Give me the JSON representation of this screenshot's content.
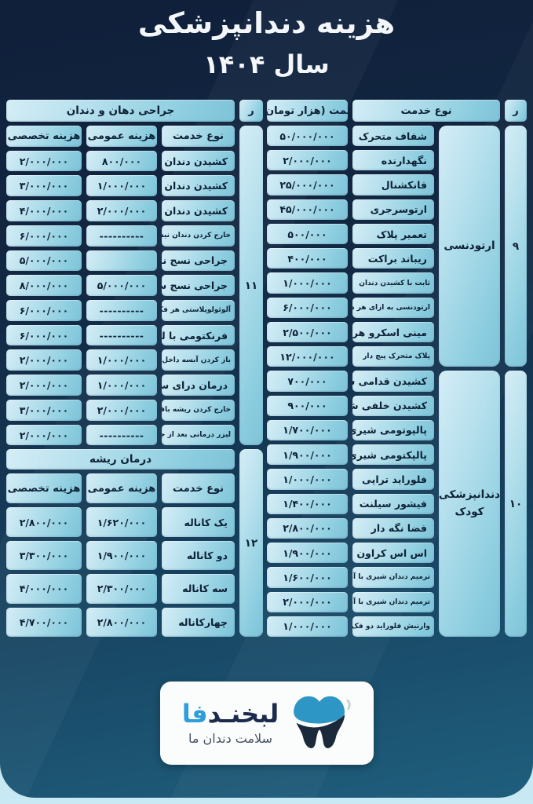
{
  "page": {
    "title_line1": "هزینه دندانپزشکی",
    "title_line2": "سال ۱۴۰۴"
  },
  "colors": {
    "card_navy": "#101f3a",
    "card_teal": "#1f5e7d",
    "cell_light": "#d4edf6",
    "cell_deep": "#7fc3d9",
    "cell_text": "#0e2136",
    "accent_blue": "#2d9ed9",
    "logo_navy": "#1c2b4d"
  },
  "right_table": {
    "col_row": "ر",
    "col_service": "نوع خدمت",
    "col_price": "قیمت (هزار تومان )",
    "groups": [
      {
        "number": "۹",
        "label": "ارتودنسی",
        "rows": [
          {
            "service": "شفاف متحرک",
            "price": "۵۰/۰۰۰/۰۰۰"
          },
          {
            "service": "نگهدارنده",
            "price": "۲/۰۰۰/۰۰۰"
          },
          {
            "service": "فانکشنال",
            "price": "۲۵/۰۰۰/۰۰۰"
          },
          {
            "service": "ارتوسرجری",
            "price": "۴۵/۰۰۰/۰۰۰"
          },
          {
            "service": "تعمیر پلاک",
            "price": "۵۰۰/۰۰۰"
          },
          {
            "service": "ریباند براکت",
            "price": "۴۰۰/۰۰۰"
          },
          {
            "service": "ثابت با کشیدن دندان",
            "price": "۱/۰۰۰/۰۰۰"
          },
          {
            "service": "ارتودنسی به ازای هر دندان نهفته",
            "price": "۶/۰۰۰/۰۰۰"
          },
          {
            "service": "مینی اسکرو هر پیچ",
            "price": "۲/۵۰۰/۰۰۰"
          },
          {
            "service": "پلاک متحرک پیچ دار",
            "price": "۱۲/۰۰۰/۰۰۰"
          }
        ]
      },
      {
        "number": "۱۰",
        "label": "دندانپزشکی کودک",
        "rows": [
          {
            "service": "کشیدن قدامی شیری",
            "price": "۷۰۰/۰۰۰"
          },
          {
            "service": "کشیدن خلفی شیری",
            "price": "۹۰۰/۰۰۰"
          },
          {
            "service": "پالپوتومی شیری",
            "price": "۱/۷۰۰/۰۰۰"
          },
          {
            "service": "پالپکتومی شیری",
            "price": "۱/۹۰۰/۰۰۰"
          },
          {
            "service": "فلوراید تراپی",
            "price": "۱/۰۰۰/۰۰۰"
          },
          {
            "service": "فیشور سیلنت",
            "price": "۱/۴۰۰/۰۰۰"
          },
          {
            "service": "فضا نگه دار",
            "price": "۲/۸۰۰/۰۰۰"
          },
          {
            "service": "اس اس کراون",
            "price": "۱/۹۰۰/۰۰۰"
          },
          {
            "service": "ترمیم دندان شیری با آمالگام",
            "price": "۱/۶۰۰/۰۰۰"
          },
          {
            "service": "ترمیم دندان شیری با آمالگام",
            "price": "۲/۰۰۰/۰۰۰"
          },
          {
            "service": "وارنیش فلوراید دو فک",
            "price": "۱/۰۰۰/۰۰۰"
          }
        ]
      }
    ]
  },
  "left_table": {
    "col_row": "ر",
    "col_service": "نوع خدمت",
    "col_general": "هزینه عمومی",
    "col_specialist": "هزینه تخصصی",
    "sections": [
      {
        "number": "۱۱",
        "title": "جراحی دهان و دندان",
        "rows": [
          {
            "service": "کشیدن دندان قدامی",
            "general": "۸۰۰/۰۰۰",
            "specialist": "۲/۰۰۰/۰۰۰"
          },
          {
            "service": "کشیدن دندان خلفی",
            "general": "۱/۰۰۰/۰۰۰",
            "specialist": "۳/۰۰۰/۰۰۰"
          },
          {
            "service": "کشیدن دندان عقل",
            "general": "۲/۰۰۰/۰۰۰",
            "specialist": "۴/۰۰۰/۰۰۰"
          },
          {
            "service": "خارج کردن دندان نیش نهفته",
            "general": "----------",
            "specialist": "۶/۰۰۰/۰۰۰"
          },
          {
            "service": "جراحی نسج نرم",
            "general": "",
            "specialist": "۵/۰۰۰/۰۰۰"
          },
          {
            "service": "جراحی نسج سخت",
            "general": "۵/۰۰۰/۰۰۰",
            "specialist": "۸/۰۰۰/۰۰۰"
          },
          {
            "service": "آلوئولوپلاستی هر فک",
            "general": "----------",
            "specialist": "۶/۰۰۰/۰۰۰"
          },
          {
            "service": "فرنکتومی با لیزر",
            "general": "----------",
            "specialist": "۶/۰۰۰/۰۰۰"
          },
          {
            "service": "باز کردن آبسه داخل دهان",
            "general": "۱/۰۰۰/۰۰۰",
            "specialist": "۲/۰۰۰/۰۰۰"
          },
          {
            "service": "درمان درای ساکت",
            "general": "۱/۰۰۰/۰۰۰",
            "specialist": "۲/۰۰۰/۰۰۰"
          },
          {
            "service": "خارج کردن ریشه باقی مانده",
            "general": "۲/۰۰۰/۰۰۰",
            "specialist": "۳/۰۰۰/۰۰۰"
          },
          {
            "service": "لیزر درمانی بعد از جراحی فک",
            "general": "----------",
            "specialist": "۲/۰۰۰/۰۰۰"
          }
        ]
      },
      {
        "number": "۱۲",
        "title": "درمان ریشه",
        "rows": [
          {
            "service": "یک کاناله",
            "general": "۱/۶۲۰/۰۰۰",
            "specialist": "۲/۸۰۰/۰۰۰"
          },
          {
            "service": "دو کاناله",
            "general": "۱/۹۰۰/۰۰۰",
            "specialist": "۳/۳۰۰/۰۰۰"
          },
          {
            "service": "سه کاناله",
            "general": "۲/۳۰۰/۰۰۰",
            "specialist": "۴/۰۰۰/۰۰۰"
          },
          {
            "service": "چهارکاناله",
            "general": "۲/۸۰۰/۰۰۰",
            "specialist": "۴/۷۰۰/۰۰۰"
          }
        ]
      }
    ]
  },
  "logo": {
    "brand": "لبخنـد",
    "brand_accent": "فا",
    "tagline": "سلامت دندان ما",
    "tooth_icon": "tooth-icon"
  }
}
